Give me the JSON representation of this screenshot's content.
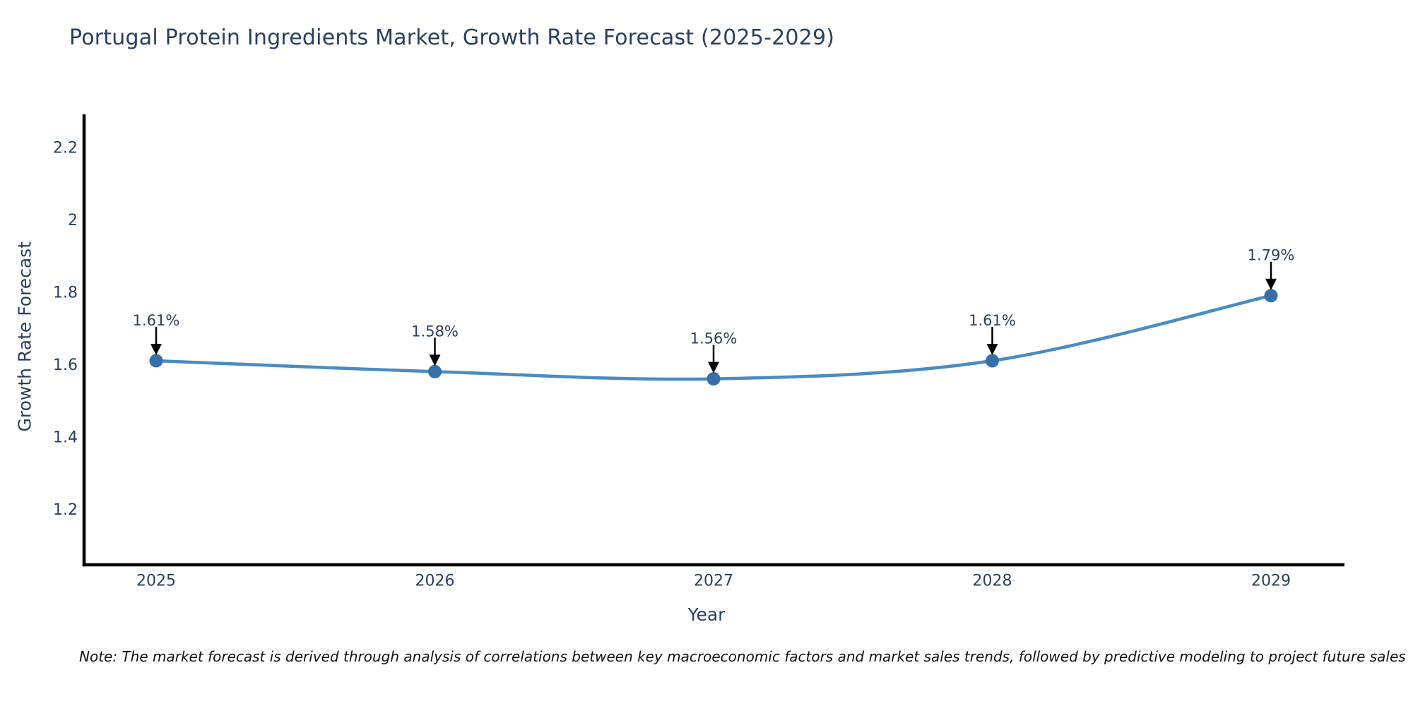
{
  "title": "Portugal Protein Ingredients Market, Growth Rate Forecast (2025-2029)",
  "note": "Note: The market forecast is derived through analysis of correlations between key macroeconomic factors and market sales trends, followed by predictive modeling to project future sales",
  "chart_data": {
    "type": "line",
    "title": "Portugal Protein Ingredients Market, Growth Rate Forecast (2025-2029)",
    "categories": [
      "2025",
      "2026",
      "2027",
      "2028",
      "2029"
    ],
    "series": [
      {
        "name": "Growth Rate Forecast",
        "values": [
          1.61,
          1.58,
          1.56,
          1.61,
          1.79
        ],
        "point_labels": [
          "1.61%",
          "1.58%",
          "1.56%",
          "1.61%",
          "1.79%"
        ]
      }
    ],
    "xlabel": "Year",
    "ylabel": "Growth Rate Forecast",
    "yticks": [
      1.2,
      1.4,
      1.6,
      1.8,
      2,
      2.2
    ],
    "ylim": [
      1.046,
      2.291
    ],
    "grid": false,
    "legend": "none",
    "line_shape": "spline",
    "annotations_have_arrows": true,
    "colors": {
      "line": "#4a8bc2",
      "marker": "#366fa8",
      "axis": "#000000",
      "tick_text": "#2a3f5f",
      "annotation_text": "#2a3f5f",
      "arrow": "#000000",
      "title_text": "#2a3f5f",
      "note_text": "#111111"
    }
  }
}
